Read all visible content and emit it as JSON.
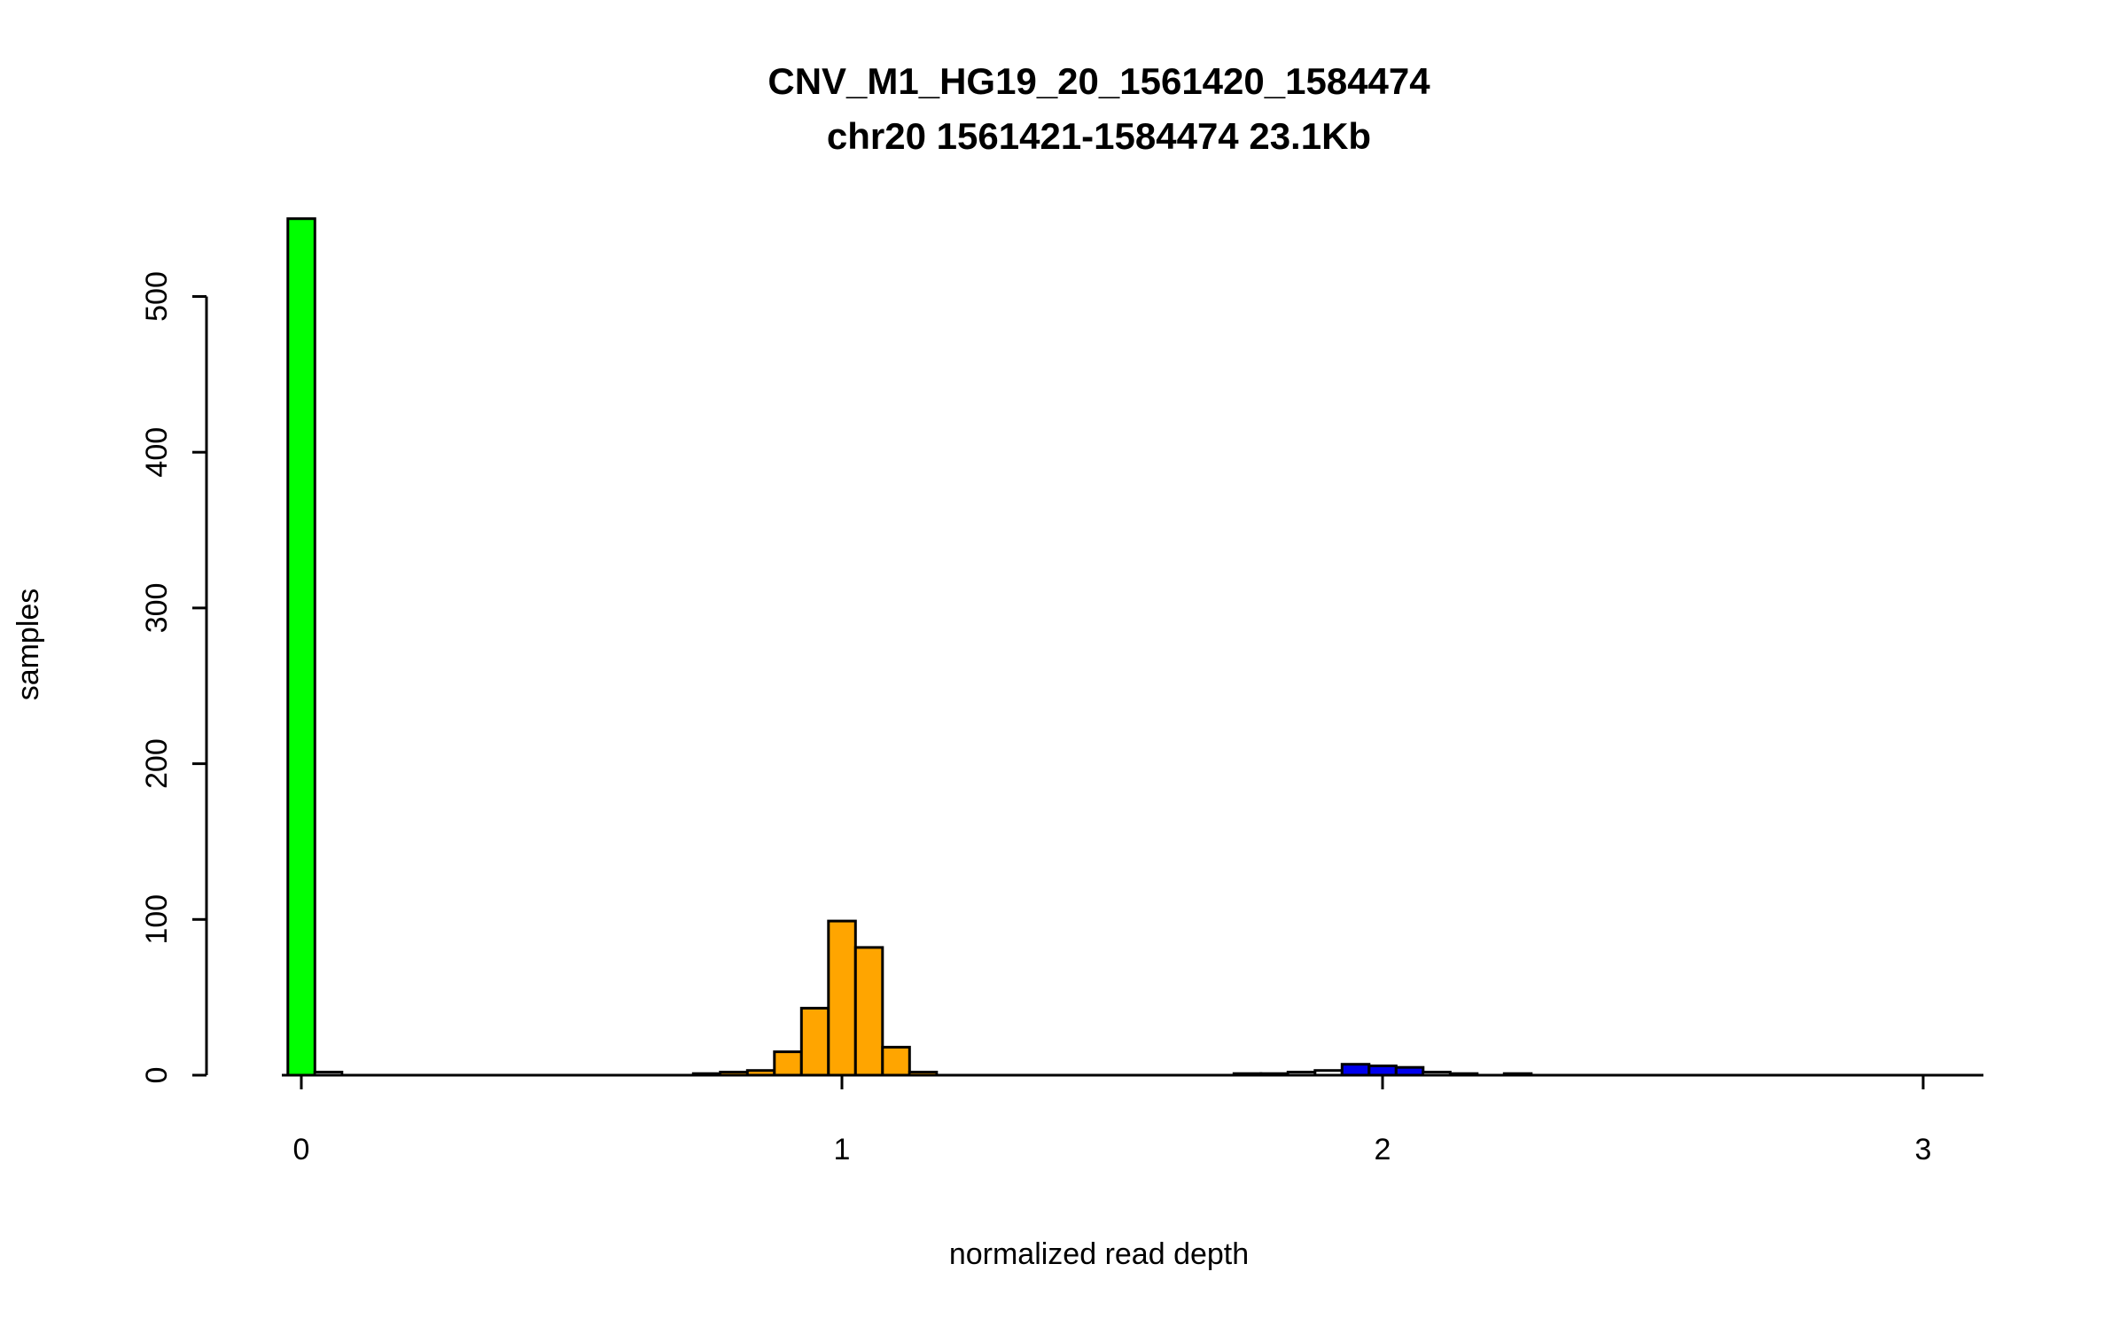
{
  "chart_data": {
    "type": "bar",
    "title": "CNV_M1_HG19_20_1561420_1584474",
    "subtitle": "chr20 1561421-1584474 23.1Kb",
    "xlabel": "normalized read depth",
    "ylabel": "samples",
    "x_ticks": [
      0,
      1,
      2,
      3
    ],
    "y_ticks": [
      0,
      100,
      200,
      300,
      400,
      500
    ],
    "xlim": [
      -0.05,
      3.12
    ],
    "ylim": [
      0,
      550
    ],
    "bin_width": 0.05,
    "legend": "none",
    "grid": false,
    "colors": {
      "deletion_peak": "#00FF00",
      "neutral_peak": "#FFA500",
      "duplication_peak": "#0000EE",
      "unclassified": "#FFFFFF",
      "outline": "#000000"
    },
    "bars": [
      {
        "x": 0.0,
        "count": 550,
        "color": "#00FF00"
      },
      {
        "x": 0.05,
        "count": 2,
        "color": "#FFFFFF"
      },
      {
        "x": 0.75,
        "count": 1,
        "color": "#FFFFFF"
      },
      {
        "x": 0.8,
        "count": 2,
        "color": "#FFA500"
      },
      {
        "x": 0.85,
        "count": 3,
        "color": "#FFA500"
      },
      {
        "x": 0.9,
        "count": 15,
        "color": "#FFA500"
      },
      {
        "x": 0.95,
        "count": 43,
        "color": "#FFA500"
      },
      {
        "x": 1.0,
        "count": 99,
        "color": "#FFA500"
      },
      {
        "x": 1.05,
        "count": 82,
        "color": "#FFA500"
      },
      {
        "x": 1.1,
        "count": 18,
        "color": "#FFA500"
      },
      {
        "x": 1.15,
        "count": 2,
        "color": "#FFA500"
      },
      {
        "x": 1.75,
        "count": 1,
        "color": "#FFFFFF"
      },
      {
        "x": 1.8,
        "count": 1,
        "color": "#FFFFFF"
      },
      {
        "x": 1.85,
        "count": 2,
        "color": "#FFFFFF"
      },
      {
        "x": 1.9,
        "count": 3,
        "color": "#FFFFFF"
      },
      {
        "x": 1.95,
        "count": 7,
        "color": "#0000EE"
      },
      {
        "x": 2.0,
        "count": 6,
        "color": "#0000EE"
      },
      {
        "x": 2.05,
        "count": 5,
        "color": "#0000EE"
      },
      {
        "x": 2.1,
        "count": 2,
        "color": "#FFFFFF"
      },
      {
        "x": 2.15,
        "count": 1,
        "color": "#FFFFFF"
      },
      {
        "x": 2.25,
        "count": 1,
        "color": "#FFFFFF"
      }
    ]
  }
}
